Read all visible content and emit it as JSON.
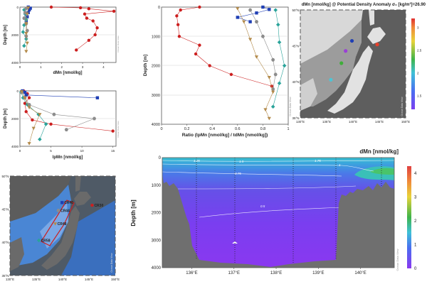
{
  "colors": {
    "red": "#cc1f1f",
    "blue": "#1f3fb4",
    "teal": "#2aa39a",
    "gray": "#8c8c8c",
    "tan": "#b38a4a",
    "land": "#6f6f6f",
    "ocean_section": "#5a2fd0",
    "frame_gray": "#7a7a7a"
  },
  "chart_data": [
    {
      "id": "dmn-profile",
      "type": "scatter",
      "xlabel": "dMn [nmol/kg]",
      "ylabel": "Depth [m]",
      "xticks": [
        "0",
        "1",
        "2",
        "3",
        "4"
      ],
      "yticks": [
        "0",
        "2000",
        "4000"
      ],
      "xlim": [
        0,
        4.6
      ],
      "ylim": [
        4000,
        0
      ],
      "watermark": "Ocean Data View",
      "series": [
        {
          "color": "red",
          "points": [
            [
              1.5,
              0
            ],
            [
              2.9,
              50
            ],
            [
              3.3,
              120
            ],
            [
              4.5,
              300
            ],
            [
              3.1,
              500
            ],
            [
              3.2,
              800
            ],
            [
              3.5,
              1000
            ],
            [
              3.7,
              1500
            ],
            [
              3.6,
              2000
            ],
            [
              3.3,
              2400
            ],
            [
              2.7,
              3100
            ]
          ]
        },
        {
          "color": "blue",
          "points": [
            [
              0.4,
              0
            ],
            [
              0.5,
              80
            ],
            [
              0.45,
              200
            ],
            [
              0.4,
              400
            ],
            [
              0.35,
              700
            ],
            [
              0.3,
              1000
            ]
          ]
        },
        {
          "color": "teal",
          "points": [
            [
              0.2,
              200
            ],
            [
              0.25,
              500
            ],
            [
              0.3,
              900
            ],
            [
              0.2,
              1300
            ],
            [
              0.15,
              1800
            ],
            [
              0.3,
              2300
            ],
            [
              0.2,
              2800
            ]
          ]
        },
        {
          "color": "gray",
          "points": [
            [
              0.3,
              100
            ],
            [
              0.25,
              400
            ],
            [
              0.2,
              800
            ],
            [
              0.3,
              1200
            ],
            [
              0.35,
              1700
            ],
            [
              0.3,
              2100
            ]
          ]
        },
        {
          "color": "tan",
          "points": [
            [
              0.4,
              50
            ],
            [
              0.35,
              500
            ],
            [
              0.3,
              1200
            ],
            [
              0.3,
              1900
            ],
            [
              0.35,
              2600
            ],
            [
              0.3,
              3200
            ]
          ]
        }
      ]
    },
    {
      "id": "lpmn-profile",
      "type": "scatter",
      "xlabel": "lpMn [nmol/kg]",
      "ylabel": "Depth [m]",
      "xticks": [
        "0",
        "5",
        "10",
        "15"
      ],
      "yticks": [
        "0",
        "2000",
        "4000"
      ],
      "xlim": [
        0,
        15.5
      ],
      "ylim": [
        4000,
        0
      ],
      "watermark": "Ocean Data View",
      "series": [
        {
          "color": "red",
          "points": [
            [
              0.6,
              0
            ],
            [
              1.2,
              200
            ],
            [
              1.5,
              500
            ],
            [
              0.8,
              900
            ],
            [
              1.0,
              1500
            ],
            [
              2.0,
              2100
            ],
            [
              5.0,
              2400
            ],
            [
              15.0,
              2900
            ]
          ]
        },
        {
          "color": "blue",
          "points": [
            [
              0.4,
              0
            ],
            [
              0.8,
              100
            ],
            [
              1.0,
              300
            ],
            [
              12.5,
              500
            ]
          ]
        },
        {
          "color": "teal",
          "points": [
            [
              0.2,
              100
            ],
            [
              0.5,
              500
            ],
            [
              1.2,
              1000
            ],
            [
              3.0,
              1700
            ],
            [
              4.2,
              2400
            ],
            [
              3.2,
              3500
            ]
          ]
        },
        {
          "color": "gray",
          "points": [
            [
              0.3,
              100
            ],
            [
              0.8,
              500
            ],
            [
              1.5,
              1000
            ],
            [
              5.5,
              1700
            ],
            [
              12.0,
              2000
            ],
            [
              7.5,
              2800
            ]
          ]
        },
        {
          "color": "tan",
          "points": [
            [
              0.3,
              50
            ],
            [
              0.8,
              500
            ],
            [
              1.5,
              1200
            ],
            [
              3.2,
              1700
            ],
            [
              2.2,
              2700
            ],
            [
              1.5,
              3800
            ]
          ]
        }
      ]
    },
    {
      "id": "ratio-profile",
      "type": "scatter",
      "xlabel": "Ratio (lpMn [nmol/kg] / tdMn [nmol/kg])",
      "ylabel": "Depth [m]",
      "xticks": [
        "0",
        "0.2",
        "0.4",
        "0.6",
        "0.8",
        "1"
      ],
      "yticks": [
        "0",
        "1000",
        "2000",
        "3000",
        "4000"
      ],
      "xlim": [
        0,
        1
      ],
      "ylim": [
        4000,
        0
      ],
      "watermark": "Ocean Data View",
      "series": [
        {
          "color": "red",
          "points": [
            [
              0.3,
              0
            ],
            [
              0.15,
              100
            ],
            [
              0.12,
              300
            ],
            [
              0.13,
              600
            ],
            [
              0.14,
              1000
            ],
            [
              0.3,
              1300
            ],
            [
              0.27,
              1600
            ],
            [
              0.38,
              2000
            ],
            [
              0.55,
              2300
            ],
            [
              0.87,
              2700
            ]
          ]
        },
        {
          "color": "blue",
          "points": [
            [
              0.8,
              0
            ],
            [
              0.85,
              80
            ],
            [
              0.75,
              200
            ],
            [
              0.6,
              350
            ],
            [
              0.7,
              500
            ]
          ]
        },
        {
          "color": "teal",
          "points": [
            [
              0.9,
              100
            ],
            [
              0.92,
              600
            ],
            [
              0.93,
              1200
            ],
            [
              0.97,
              2000
            ],
            [
              0.93,
              2600
            ],
            [
              0.88,
              3400
            ]
          ]
        },
        {
          "color": "gray",
          "points": [
            [
              0.7,
              100
            ],
            [
              0.75,
              500
            ],
            [
              0.8,
              1000
            ],
            [
              0.88,
              1800
            ],
            [
              0.9,
              2300
            ],
            [
              0.88,
              2800
            ]
          ]
        },
        {
          "color": "tan",
          "points": [
            [
              0.6,
              50
            ],
            [
              0.65,
              500
            ],
            [
              0.7,
              1100
            ],
            [
              0.75,
              1700
            ],
            [
              0.85,
              2400
            ],
            [
              0.88,
              2900
            ],
            [
              0.82,
              3500
            ],
            [
              0.85,
              3800
            ]
          ]
        }
      ]
    },
    {
      "id": "surface-map",
      "type": "scatter",
      "title": "dMn [nmol/kg] @ Potential Density Anomaly σ₀ [kg/m³]=26.90",
      "xticks": [
        "130°E",
        "135°E",
        "140°E",
        "145°E",
        "150°E"
      ],
      "yticks": [
        "35°N",
        "40°N",
        "45°N",
        "50°N"
      ],
      "xlim": [
        130,
        150
      ],
      "ylim": [
        35,
        50
      ],
      "colorbar_ticks": [
        "1.5",
        "2",
        "2.5",
        "3"
      ],
      "colorbar_range": [
        1.2,
        3.2
      ],
      "watermark": "Ocean Data View",
      "stations": [
        {
          "lon": 139.8,
          "lat": 45.7,
          "color": "#1f3fb4"
        },
        {
          "lon": 144.6,
          "lat": 45.2,
          "color": "#e8402a"
        },
        {
          "lon": 138.6,
          "lat": 44.3,
          "color": "#9a3fd6"
        },
        {
          "lon": 137.8,
          "lat": 42.6,
          "color": "#3fae3a"
        },
        {
          "lon": 135.8,
          "lat": 40.3,
          "color": "#4fc4d4"
        }
      ]
    },
    {
      "id": "station-map",
      "type": "scatter",
      "xticks": [
        "130°E",
        "135°E",
        "140°E",
        "145°E",
        "150°E"
      ],
      "yticks": [
        "35°N",
        "40°N",
        "45°N",
        "50°N"
      ],
      "xlim": [
        130,
        150
      ],
      "ylim": [
        35,
        50
      ],
      "watermark": "Ocean Data View",
      "stations": [
        {
          "lon": 139.9,
          "lat": 46.0,
          "label": "CR40",
          "color": "blue"
        },
        {
          "lon": 145.6,
          "lat": 45.6,
          "label": "CR30",
          "color": "red"
        },
        {
          "lon": 139.2,
          "lat": 44.8,
          "label": "CR44",
          "color": "gray"
        },
        {
          "lon": 138.6,
          "lat": 42.8,
          "label": "CR48",
          "color": "tan"
        },
        {
          "lon": 135.5,
          "lat": 40.3,
          "label": "CR58",
          "color": "teal"
        }
      ]
    },
    {
      "id": "dmn-section",
      "type": "heatmap",
      "title": "dMn [nmol/kg]",
      "ylabel": "Depth [m]",
      "xticks": [
        "136°E",
        "137°E",
        "138°E",
        "139°E",
        "140°E"
      ],
      "yticks": [
        "0",
        "1000",
        "2000",
        "3000",
        "4000"
      ],
      "xlim": [
        135.3,
        140.8
      ],
      "ylim": [
        4000,
        0
      ],
      "colorbar_ticks": [
        "0",
        "1",
        "2",
        "3",
        "4"
      ],
      "colorbar_range": [
        0,
        4.3
      ],
      "contours": [
        {
          "label": "1.25",
          "level": 1.25
        },
        {
          "label": "1.5",
          "level": 1.5
        },
        {
          "label": "1.75",
          "level": 1.75
        },
        {
          "label": "1",
          "level": 1
        },
        {
          "label": "0.75",
          "level": 0.75
        },
        {
          "label": "0.5",
          "level": 0.5
        }
      ],
      "watermark": "Ocean Data View"
    }
  ]
}
